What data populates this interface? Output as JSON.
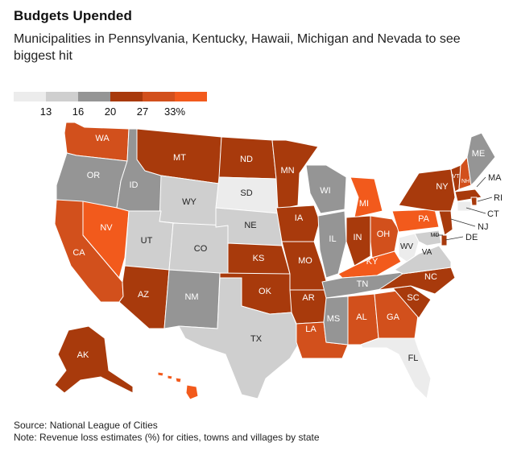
{
  "chart_data": {
    "type": "choropleth",
    "title": "Budgets Upended",
    "subtitle": "Municipalities in Pennsylvania, Kentucky, Hawaii, Michigan and Nevada to see biggest hit",
    "legend": {
      "bins": [
        {
          "color": "#ececec"
        },
        {
          "color": "#cfcfcf"
        },
        {
          "color": "#959595"
        },
        {
          "color": "#a83a0c"
        },
        {
          "color": "#d2501c"
        },
        {
          "color": "#f25a1c"
        }
      ],
      "ticks": [
        "13",
        "16",
        "20",
        "27",
        "33%"
      ]
    },
    "colors": {
      "bin1": "#ececec",
      "bin2": "#cfcfcf",
      "bin3": "#959595",
      "bin4": "#a83a0c",
      "bin5": "#d2501c",
      "bin6": "#f25a1c",
      "border": "#ffffff",
      "label_light": "#ffffff",
      "label_dark": "#222222"
    },
    "states": [
      {
        "abbr": "WA",
        "bin": 5
      },
      {
        "abbr": "OR",
        "bin": 3
      },
      {
        "abbr": "CA",
        "bin": 5
      },
      {
        "abbr": "NV",
        "bin": 6
      },
      {
        "abbr": "ID",
        "bin": 3
      },
      {
        "abbr": "MT",
        "bin": 4
      },
      {
        "abbr": "WY",
        "bin": 2
      },
      {
        "abbr": "UT",
        "bin": 2
      },
      {
        "abbr": "AZ",
        "bin": 4
      },
      {
        "abbr": "CO",
        "bin": 2
      },
      {
        "abbr": "NM",
        "bin": 3
      },
      {
        "abbr": "ND",
        "bin": 4
      },
      {
        "abbr": "SD",
        "bin": 1
      },
      {
        "abbr": "NE",
        "bin": 2
      },
      {
        "abbr": "KS",
        "bin": 4
      },
      {
        "abbr": "OK",
        "bin": 4
      },
      {
        "abbr": "TX",
        "bin": 2
      },
      {
        "abbr": "MN",
        "bin": 4
      },
      {
        "abbr": "IA",
        "bin": 4
      },
      {
        "abbr": "MO",
        "bin": 4
      },
      {
        "abbr": "AR",
        "bin": 4
      },
      {
        "abbr": "LA",
        "bin": 5
      },
      {
        "abbr": "WI",
        "bin": 3
      },
      {
        "abbr": "IL",
        "bin": 3
      },
      {
        "abbr": "MI",
        "bin": 6
      },
      {
        "abbr": "IN",
        "bin": 4
      },
      {
        "abbr": "OH",
        "bin": 5
      },
      {
        "abbr": "KY",
        "bin": 6
      },
      {
        "abbr": "TN",
        "bin": 3
      },
      {
        "abbr": "MS",
        "bin": 3
      },
      {
        "abbr": "AL",
        "bin": 5
      },
      {
        "abbr": "GA",
        "bin": 5
      },
      {
        "abbr": "FL",
        "bin": 1
      },
      {
        "abbr": "SC",
        "bin": 4
      },
      {
        "abbr": "NC",
        "bin": 4
      },
      {
        "abbr": "VA",
        "bin": 2
      },
      {
        "abbr": "WV",
        "bin": 1
      },
      {
        "abbr": "PA",
        "bin": 6
      },
      {
        "abbr": "NY",
        "bin": 4
      },
      {
        "abbr": "VT",
        "bin": 4
      },
      {
        "abbr": "NH",
        "bin": 5
      },
      {
        "abbr": "ME",
        "bin": 3
      },
      {
        "abbr": "MA",
        "bin": 4
      },
      {
        "abbr": "RI",
        "bin": 4
      },
      {
        "abbr": "CT",
        "bin": 1
      },
      {
        "abbr": "NJ",
        "bin": 4
      },
      {
        "abbr": "DE",
        "bin": 4
      },
      {
        "abbr": "MD",
        "bin": 2
      },
      {
        "abbr": "AK",
        "bin": 4
      },
      {
        "abbr": "HI",
        "bin": 6
      }
    ]
  },
  "footer": {
    "source": "Source: National League of Cities",
    "note": "Note: Revenue loss estimates (%) for cities, towns and villages by state"
  }
}
